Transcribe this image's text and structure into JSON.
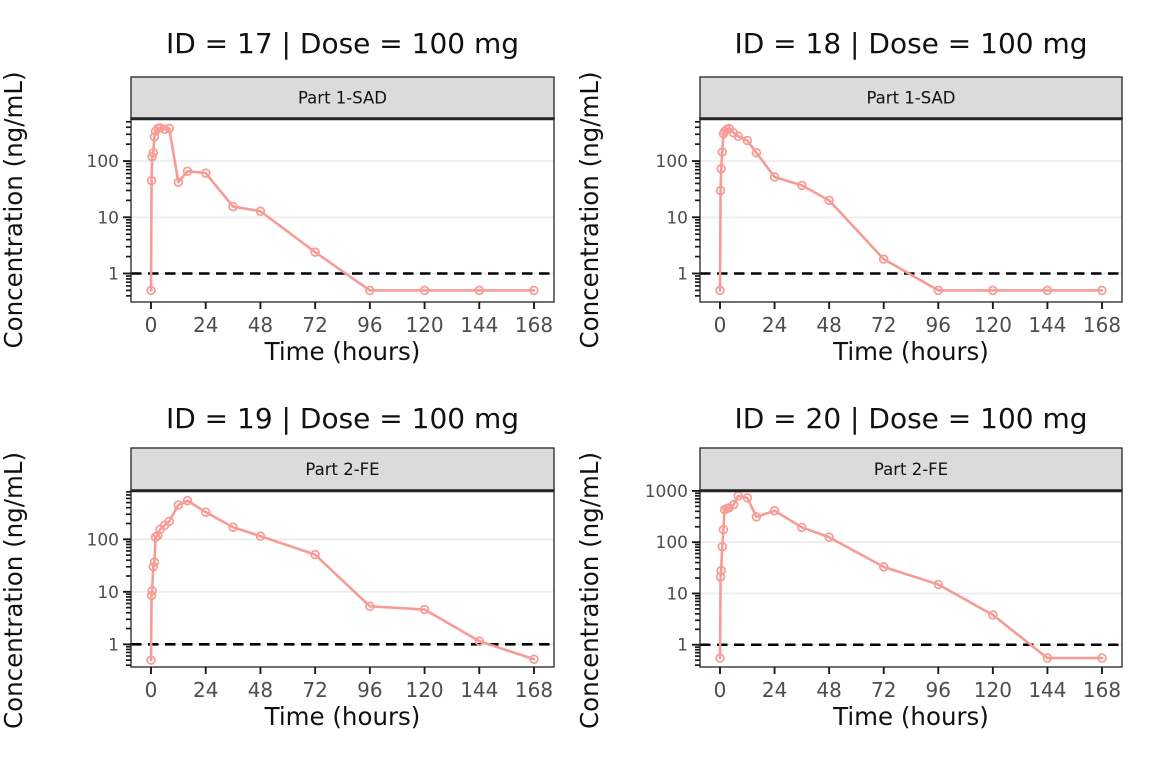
{
  "figure": {
    "colors": {
      "series": "#F79C95",
      "strip_fill": "#DBDBDB",
      "strip_border": "#333333",
      "panel_border": "#333333",
      "panel_top_accent": "#262626",
      "gridline": "#EBEBEB",
      "tick": "#1A1A1A",
      "tick_label": "#4D4D4D",
      "text": "#111111",
      "lloq_line": "#000000",
      "panel_background": "#FFFFFF"
    }
  },
  "chart_data": [
    {
      "type": "line",
      "title": "ID = 17 | Dose = 100 mg",
      "facet_label": "Part 1-SAD",
      "xlabel": "Time (hours)",
      "ylabel": "Concentration (ng/mL)",
      "y_scale": "log10",
      "xlim": [
        0,
        168
      ],
      "ylim": [
        0.311,
        584
      ],
      "x_ticks": [
        0,
        24,
        48,
        72,
        96,
        120,
        144,
        168
      ],
      "y_ticks": [
        1,
        10,
        100
      ],
      "lloq": 1,
      "grid": "horizontal-major-only",
      "legend": "none",
      "x": [
        0,
        0.25,
        0.5,
        1,
        1.5,
        2,
        3,
        4,
        6,
        8,
        12,
        16,
        24,
        36,
        48,
        72,
        96,
        120,
        144,
        168
      ],
      "y": [
        0.5,
        45,
        120,
        140,
        270,
        340,
        380,
        390,
        370,
        380,
        42,
        66,
        61,
        15.5,
        12.8,
        2.4,
        0.5,
        0.5,
        0.5,
        0.5
      ]
    },
    {
      "type": "line",
      "title": "ID = 18 | Dose = 100 mg",
      "facet_label": "Part 1-SAD",
      "xlabel": "Time (hours)",
      "ylabel": "Concentration (ng/mL)",
      "y_scale": "log10",
      "xlim": [
        0,
        168
      ],
      "ylim": [
        0.311,
        584
      ],
      "x_ticks": [
        0,
        24,
        48,
        72,
        96,
        120,
        144,
        168
      ],
      "y_ticks": [
        1,
        10,
        100
      ],
      "lloq": 1,
      "grid": "horizontal-major-only",
      "legend": "none",
      "x": [
        0,
        0.25,
        0.5,
        1,
        1.5,
        2,
        3,
        4,
        6,
        8,
        12,
        16,
        24,
        36,
        48,
        72,
        96,
        120,
        144,
        168
      ],
      "y": [
        0.5,
        30,
        73,
        145,
        305,
        335,
        362,
        380,
        318,
        276,
        232,
        141,
        52,
        37,
        20,
        1.8,
        0.5,
        0.5,
        0.5,
        0.5
      ]
    },
    {
      "type": "line",
      "title": "ID = 19 | Dose = 100 mg",
      "facet_label": "Part 2-FE",
      "xlabel": "Time (hours)",
      "ylabel": "Concentration (ng/mL)",
      "y_scale": "log10",
      "xlim": [
        0,
        168
      ],
      "ylim": [
        0.37,
        869
      ],
      "x_ticks": [
        0,
        24,
        48,
        72,
        96,
        120,
        144,
        168
      ],
      "y_ticks": [
        1,
        10,
        100
      ],
      "lloq": 1,
      "grid": "horizontal-major-only",
      "legend": "none",
      "x": [
        0,
        0.25,
        0.5,
        1,
        1.5,
        2,
        3,
        4,
        6,
        8,
        12,
        16,
        24,
        36,
        48,
        72,
        96,
        120,
        144,
        168
      ],
      "y": [
        0.5,
        8.5,
        10.5,
        30,
        37,
        110,
        118,
        155,
        185,
        220,
        450,
        545,
        330,
        170,
        115,
        51,
        5.3,
        4.6,
        1.15,
        0.52
      ]
    },
    {
      "type": "line",
      "title": "ID = 20 | Dose = 100 mg",
      "facet_label": "Part 2-FE",
      "xlabel": "Time (hours)",
      "ylabel": "Concentration (ng/mL)",
      "y_scale": "log10",
      "xlim": [
        0,
        168
      ],
      "ylim": [
        0.368,
        1042
      ],
      "x_ticks": [
        0,
        24,
        48,
        72,
        96,
        120,
        144,
        168
      ],
      "y_ticks": [
        1,
        10,
        100,
        1000
      ],
      "lloq": 1,
      "grid": "horizontal-major-only",
      "legend": "none",
      "x": [
        0,
        0.25,
        0.5,
        1,
        1.5,
        2,
        3,
        4,
        6,
        8,
        12,
        16,
        24,
        36,
        48,
        72,
        96,
        120,
        144,
        168
      ],
      "y": [
        0.55,
        21,
        28,
        82,
        176,
        430,
        450,
        470,
        540,
        800,
        730,
        312,
        410,
        195,
        125,
        33,
        15,
        3.8,
        0.55,
        0.55
      ]
    }
  ]
}
